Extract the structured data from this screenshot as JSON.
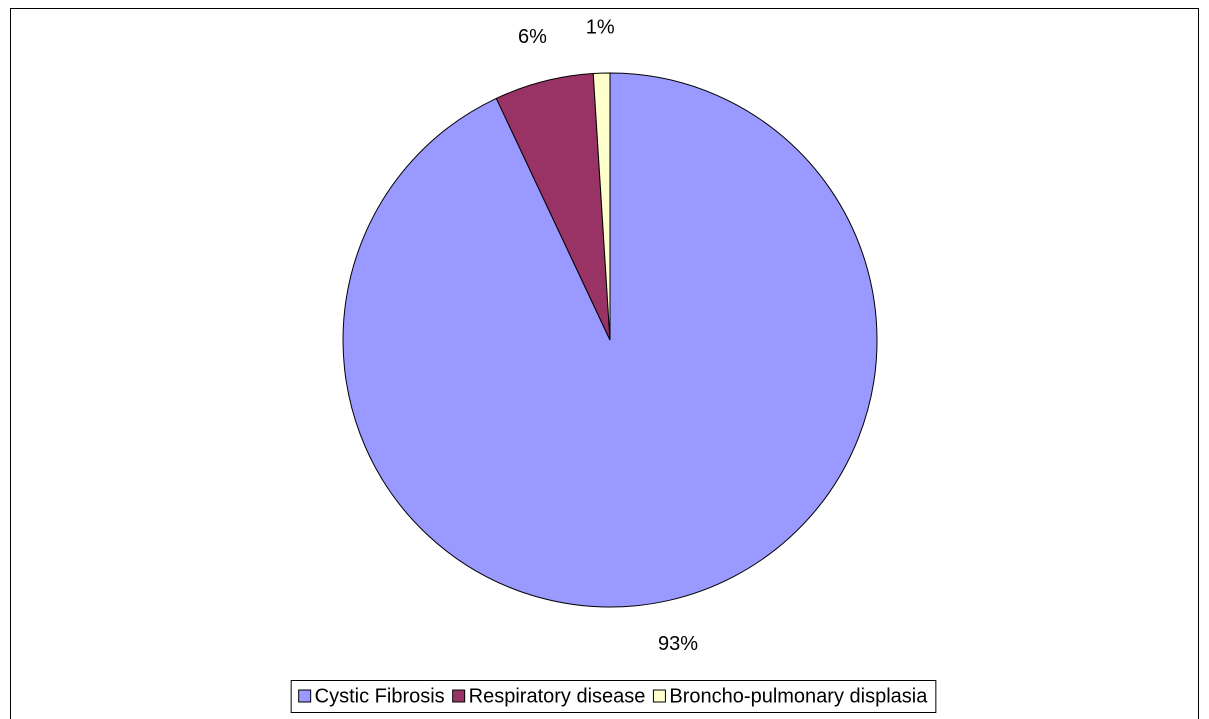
{
  "chart_data": {
    "type": "pie",
    "categories": [
      "Cystic Fibrosis",
      "Respiratory disease",
      "Broncho-pulmonary displasia"
    ],
    "values": [
      93,
      6,
      1
    ],
    "value_labels": [
      "93%",
      "6%",
      "1%"
    ],
    "colors": [
      "#9999ff",
      "#993366",
      "#ffffcc"
    ],
    "legend": "bottom"
  }
}
